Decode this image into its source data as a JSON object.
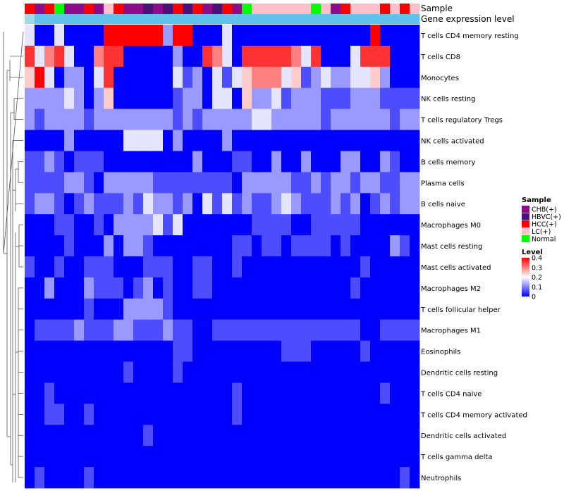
{
  "chart_data": {
    "type": "heatmap",
    "annotation_tracks": [
      {
        "name": "Sample"
      },
      {
        "name": "Gene expression level"
      }
    ],
    "sample_annotation_codes": "HCHNCCHCLHCCBCBHBHCBHCNLLLLLLNLCHLLLHLHL",
    "sample_group_codes": {
      "C": "CHB(+)",
      "B": "HBVC(+)",
      "H": "HCC(+)",
      "L": "LC(+)",
      "N": "Normal"
    },
    "gene_level_codes": "PBBBBBBBBBBBBBBBBBBBBBBBBBBBBBBBBBBBBBBB",
    "gene_level_colors": {
      "P": "#9edaea",
      "B": "#5fc3ee"
    },
    "rows": [
      "T cells CD4 memory resting",
      "T cells CD8",
      "Monocytes",
      "NK cells resting",
      "T cells regulatory  Tregs",
      "NK cells activated",
      "B cells memory",
      "Plasma cells",
      "B cells naive",
      "Macrophages M0",
      "Mast cells resting",
      "Mast cells activated",
      "Macrophages M2",
      "T cells follicular helper",
      "Macrophages M1",
      "Eosinophils",
      "Dendritic cells resting",
      "T cells CD4 naive",
      "T cells CD4 memory activated",
      "Dendritic cells activated",
      "T cells gamma delta",
      "Neutrophils"
    ],
    "columns": 40,
    "values": [
      "3003000088888828700030000000000000080000",
      "6356300566000002006530666665360003666000",
      "4830220360000003120313455534123223342000",
      "2222320240000001220330422312221112221111",
      "2122221222222221212222233222221222222122",
      "0000200000333302000020000000000000000000",
      "1121011100000000020001100200200022002100",
      "1111221022222111111110222221121221221122",
      "1221012111213221203131211232111212012122",
      "0001100102222313000000011110011111000000",
      "0000100020221000000001101101111010000210",
      "1001001110001110011001000000000000100000",
      "0020002111012010011000000000000001000000",
      "0000001000222210000000000000000000000000",
      "0111121112211121100111111111111111001111",
      "0000000000000001100000000011100000100000",
      "0000000000100001000000000000000000000000",
      "0010000000000000000001000000000000001000",
      "0011001000000000000001000000000000000000",
      "0000000000001000000000000000000000000000",
      "0000000000000000000000000000000000000000",
      "0100001000000000000000000000000000000010"
    ],
    "value_code_to_level": {
      "0": 0.0,
      "1": 0.06,
      "2": 0.12,
      "3": 0.18,
      "4": 0.24,
      "5": 0.3,
      "6": 0.36,
      "7": 0.4,
      "8": 0.43
    },
    "legend": {
      "sample_title": "Sample",
      "sample_entries": [
        {
          "label": "CHB(+)",
          "color": "#8e0b8a"
        },
        {
          "label": "HBVC(+)",
          "color": "#4a1278"
        },
        {
          "label": "HCC(+)",
          "color": "#ff0000"
        },
        {
          "label": "LC(+)",
          "color": "#ffc0cb"
        },
        {
          "label": "Normal",
          "color": "#00ff00"
        }
      ],
      "level_title": "Level",
      "level_ticks": [
        "0",
        "0.1",
        "0.2",
        "0.3",
        "0.4"
      ],
      "level_range": [
        0,
        0.4
      ],
      "colors": {
        "low": "#0000ff",
        "mid": "#ffffff",
        "high": "#ff0000"
      }
    }
  }
}
